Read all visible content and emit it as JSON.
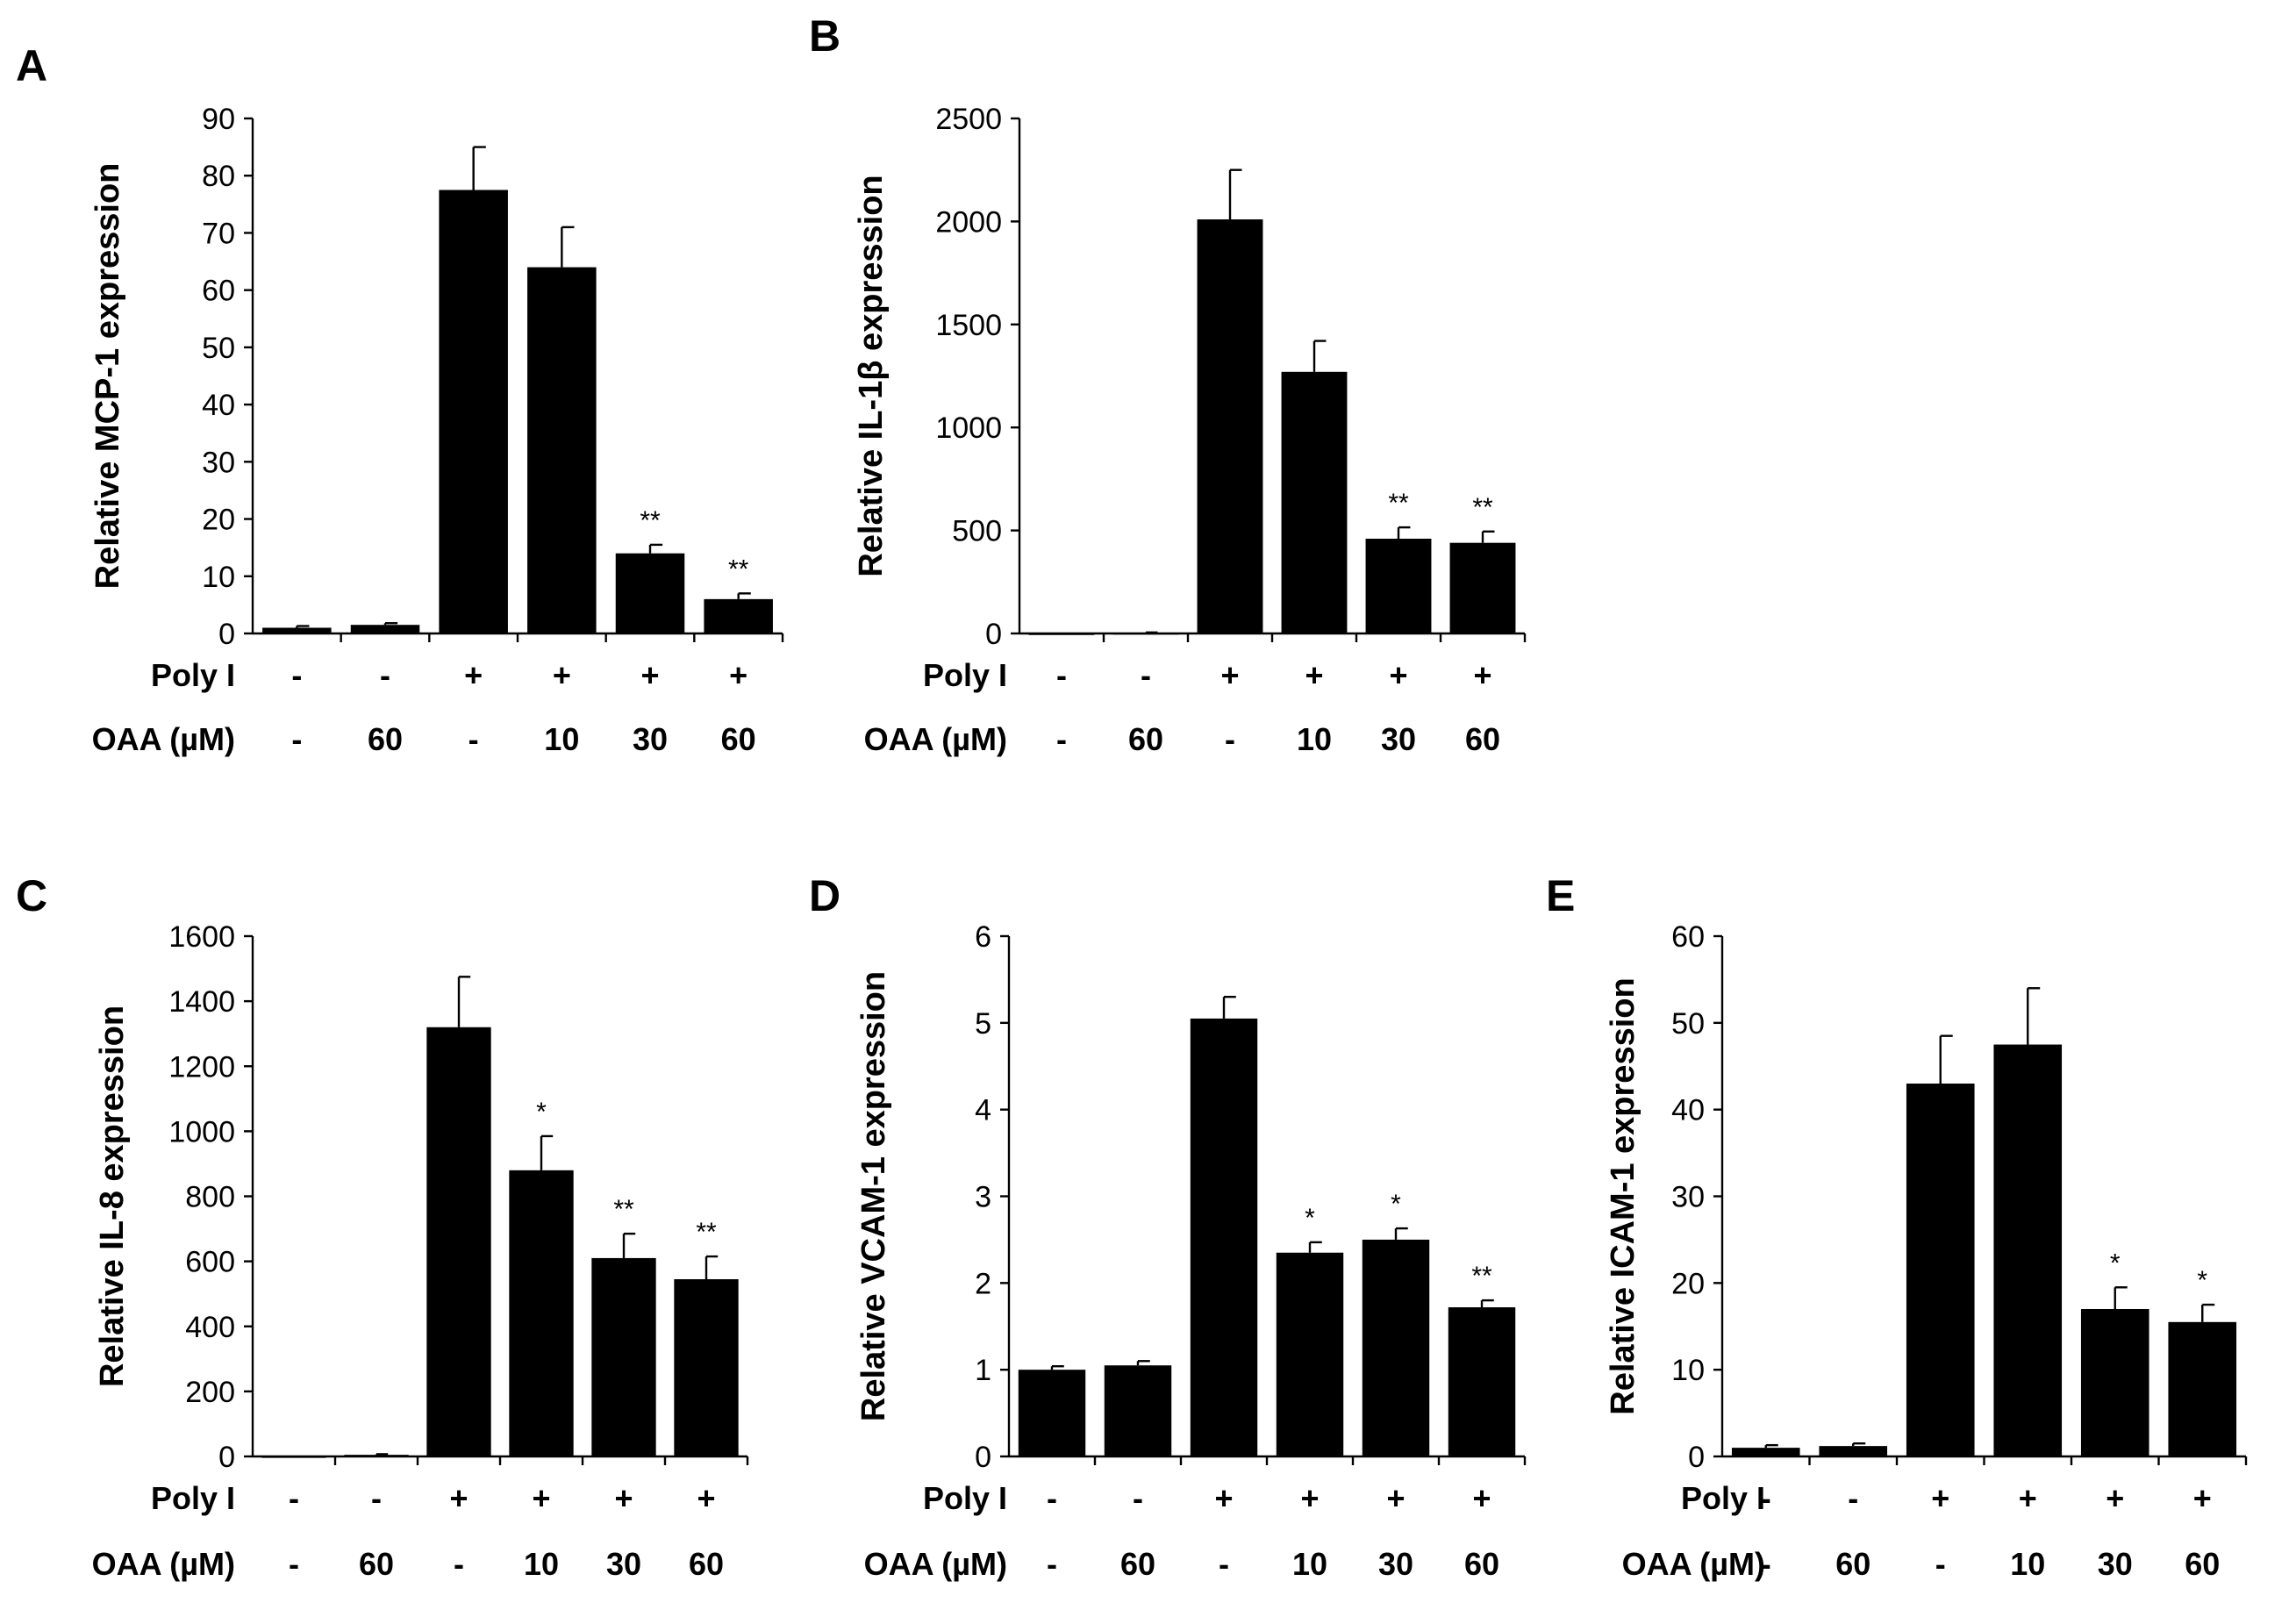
{
  "figure": {
    "row_labels": {
      "poly": "Poly I",
      "oaa": "OAA (µM)"
    },
    "conditions": {
      "poly": [
        "-",
        "-",
        "+",
        "+",
        "+",
        "+"
      ],
      "oaa": [
        "-",
        "60",
        "-",
        "10",
        "30",
        "60"
      ]
    }
  },
  "chart_data": [
    {
      "panel": "A",
      "type": "bar",
      "ylabel": "Relative MCP-1 expression",
      "ylim": [
        0,
        90
      ],
      "yticks": [
        "0",
        "10",
        "20",
        "30",
        "40",
        "50",
        "60",
        "70",
        "80",
        "90"
      ],
      "values": [
        1,
        1.5,
        77.5,
        64,
        14,
        6
      ],
      "errors": [
        0.3,
        0.3,
        7.5,
        7,
        1.5,
        1
      ],
      "significance": [
        "",
        "",
        "",
        "",
        "**",
        "**"
      ]
    },
    {
      "panel": "B",
      "type": "bar",
      "ylabel": "Relative IL-1β expression",
      "ylim": [
        0,
        2500
      ],
      "yticks": [
        "0",
        "500",
        "1000",
        "1500",
        "2000",
        "2500"
      ],
      "values": [
        1,
        3,
        2010,
        1270,
        460,
        440
      ],
      "errors": [
        0,
        2,
        240,
        150,
        55,
        55
      ],
      "significance": [
        "",
        "",
        "",
        "",
        "**",
        "**"
      ]
    },
    {
      "panel": "C",
      "type": "bar",
      "ylabel": "Relative IL-8 expression",
      "ylim": [
        0,
        1600
      ],
      "yticks": [
        "0",
        "200",
        "400",
        "600",
        "800",
        "1000",
        "1200",
        "1400",
        "1600"
      ],
      "values": [
        1,
        5,
        1320,
        880,
        610,
        545
      ],
      "errors": [
        0,
        2,
        155,
        105,
        75,
        70
      ],
      "significance": [
        "",
        "",
        "",
        "*",
        "**",
        "**"
      ]
    },
    {
      "panel": "D",
      "type": "bar",
      "ylabel": "Relative VCAM-1 expression",
      "ylim": [
        0,
        6
      ],
      "yticks": [
        "0",
        "1",
        "2",
        "3",
        "4",
        "5",
        "6"
      ],
      "values": [
        1,
        1.05,
        5.05,
        2.35,
        2.5,
        1.72
      ],
      "errors": [
        0.04,
        0.05,
        0.25,
        0.12,
        0.13,
        0.08
      ],
      "significance": [
        "",
        "",
        "",
        "*",
        "*",
        "**"
      ]
    },
    {
      "panel": "E",
      "type": "bar",
      "ylabel": "Relative ICAM-1 expression",
      "ylim": [
        0,
        60
      ],
      "yticks": [
        "0",
        "10",
        "20",
        "30",
        "40",
        "50",
        "60"
      ],
      "values": [
        1,
        1.2,
        43,
        47.5,
        17,
        15.5
      ],
      "errors": [
        0.3,
        0.3,
        5.5,
        6.5,
        2.5,
        2
      ],
      "significance": [
        "",
        "",
        "",
        "",
        "*",
        "*"
      ]
    }
  ]
}
